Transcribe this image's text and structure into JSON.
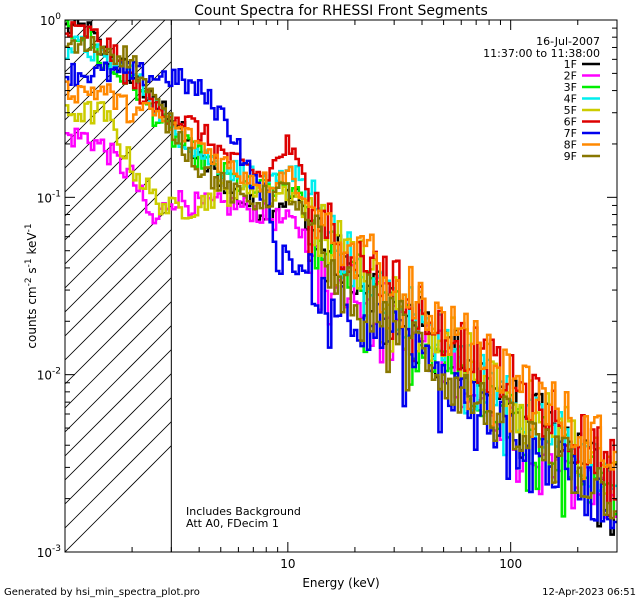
{
  "chart_data": {
    "type": "line",
    "title": "Count Spectra for RHESSI Front Segments",
    "xlabel": "Energy (keV)",
    "ylabel_main": "counts cm",
    "ylabel_exp1": "-2",
    "ylabel_mid": " s",
    "ylabel_exp2": "-1",
    "ylabel_unit": " keV",
    "ylabel_exp3": "-1",
    "xscale": "log",
    "yscale": "log",
    "xlim": [
      1,
      300
    ],
    "ylim": [
      0.001,
      1.0
    ],
    "x_ticks": [
      {
        "value": 10,
        "label": "10"
      },
      {
        "value": 100,
        "label": "100"
      }
    ],
    "y_ticks": [
      {
        "value": 1.0,
        "base": "10",
        "exp": "0"
      },
      {
        "value": 0.1,
        "base": "10",
        "exp": "-1"
      },
      {
        "value": 0.01,
        "base": "10",
        "exp": "-2"
      },
      {
        "value": 0.001,
        "base": "10",
        "exp": "-3"
      }
    ],
    "hatched_region": {
      "x_from": 1,
      "x_to": 3
    },
    "date": "16-Jul-2007",
    "time_range": "11:37:00 to 11:38:00",
    "annotations": [
      "Includes Background",
      "Att A0, FDecim 1"
    ],
    "series": [
      {
        "name": "1F",
        "color": "#000000",
        "points": [
          [
            1.25,
            0.9
          ],
          [
            1.5,
            0.65
          ],
          [
            2,
            0.5
          ],
          [
            2.5,
            0.33
          ],
          [
            3,
            0.3
          ],
          [
            4,
            0.16
          ],
          [
            5,
            0.13
          ],
          [
            6,
            0.1
          ],
          [
            7,
            0.088
          ],
          [
            8,
            0.084
          ],
          [
            10,
            0.1
          ],
          [
            11,
            0.1
          ],
          [
            13,
            0.065
          ],
          [
            15,
            0.045
          ],
          [
            20,
            0.039
          ],
          [
            30,
            0.026
          ],
          [
            40,
            0.019
          ],
          [
            50,
            0.015
          ],
          [
            70,
            0.0105
          ],
          [
            100,
            0.007
          ],
          [
            150,
            0.005
          ],
          [
            200,
            0.0038
          ],
          [
            250,
            0.003
          ],
          [
            300,
            0.0025
          ]
        ]
      },
      {
        "name": "2F",
        "color": "#ff00ff",
        "points": [
          [
            1.25,
            0.22
          ],
          [
            1.5,
            0.19
          ],
          [
            2,
            0.13
          ],
          [
            2.5,
            0.07
          ],
          [
            3,
            0.1
          ],
          [
            4,
            0.09
          ],
          [
            5,
            0.09
          ],
          [
            6,
            0.09
          ],
          [
            7,
            0.085
          ],
          [
            8,
            0.078
          ],
          [
            10,
            0.072
          ],
          [
            11,
            0.07
          ],
          [
            13,
            0.05
          ],
          [
            15,
            0.04
          ],
          [
            20,
            0.032
          ],
          [
            30,
            0.022
          ],
          [
            40,
            0.016
          ],
          [
            50,
            0.012
          ],
          [
            70,
            0.008
          ],
          [
            100,
            0.0055
          ],
          [
            150,
            0.0038
          ],
          [
            200,
            0.0026
          ],
          [
            250,
            0.002
          ],
          [
            300,
            0.0018
          ]
        ]
      },
      {
        "name": "3F",
        "color": "#00ee00",
        "points": [
          [
            1.25,
            0.85
          ],
          [
            1.5,
            0.55
          ],
          [
            2,
            0.45
          ],
          [
            2.5,
            0.3
          ],
          [
            3,
            0.22
          ],
          [
            4,
            0.17
          ],
          [
            5,
            0.14
          ],
          [
            6,
            0.12
          ],
          [
            7,
            0.11
          ],
          [
            8,
            0.11
          ],
          [
            10,
            0.12
          ],
          [
            11,
            0.1
          ],
          [
            13,
            0.07
          ],
          [
            15,
            0.05
          ],
          [
            20,
            0.035
          ],
          [
            30,
            0.024
          ],
          [
            40,
            0.017
          ],
          [
            50,
            0.013
          ],
          [
            70,
            0.009
          ],
          [
            100,
            0.006
          ],
          [
            150,
            0.0042
          ],
          [
            200,
            0.003
          ],
          [
            250,
            0.0024
          ],
          [
            300,
            0.002
          ]
        ]
      },
      {
        "name": "4F",
        "color": "#00eeee",
        "points": [
          [
            1.25,
            0.7
          ],
          [
            1.5,
            0.6
          ],
          [
            2,
            0.5
          ],
          [
            2.5,
            0.35
          ],
          [
            3,
            0.25
          ],
          [
            4,
            0.18
          ],
          [
            5,
            0.15
          ],
          [
            6,
            0.14
          ],
          [
            7,
            0.13
          ],
          [
            8,
            0.11
          ],
          [
            10,
            0.13
          ],
          [
            11,
            0.15
          ],
          [
            13,
            0.09
          ],
          [
            15,
            0.06
          ],
          [
            20,
            0.042
          ],
          [
            30,
            0.028
          ],
          [
            40,
            0.02
          ],
          [
            50,
            0.015
          ],
          [
            70,
            0.01
          ],
          [
            100,
            0.0075
          ],
          [
            150,
            0.005
          ],
          [
            200,
            0.0036
          ],
          [
            250,
            0.003
          ],
          [
            300,
            0.0025
          ]
        ]
      },
      {
        "name": "5F",
        "color": "#cccc00",
        "points": [
          [
            1.25,
            0.3
          ],
          [
            1.5,
            0.3
          ],
          [
            2,
            0.15
          ],
          [
            2.5,
            0.1
          ],
          [
            3,
            0.085
          ],
          [
            4,
            0.09
          ],
          [
            5,
            0.11
          ],
          [
            6,
            0.1
          ],
          [
            7,
            0.12
          ],
          [
            8,
            0.1
          ],
          [
            10,
            0.11
          ],
          [
            11,
            0.1
          ],
          [
            13,
            0.075
          ],
          [
            15,
            0.06
          ],
          [
            20,
            0.045
          ],
          [
            30,
            0.03
          ],
          [
            40,
            0.022
          ],
          [
            50,
            0.016
          ],
          [
            70,
            0.012
          ],
          [
            100,
            0.008
          ],
          [
            150,
            0.0055
          ],
          [
            200,
            0.004
          ],
          [
            250,
            0.0032
          ],
          [
            300,
            0.0028
          ]
        ]
      },
      {
        "name": "6F",
        "color": "#dd0000",
        "points": [
          [
            1.25,
            0.85
          ],
          [
            1.5,
            0.75
          ],
          [
            2,
            0.45
          ],
          [
            2.5,
            0.32
          ],
          [
            3,
            0.3
          ],
          [
            4,
            0.24
          ],
          [
            5,
            0.18
          ],
          [
            6,
            0.15
          ],
          [
            7,
            0.14
          ],
          [
            8,
            0.13
          ],
          [
            10,
            0.2
          ],
          [
            11,
            0.15
          ],
          [
            13,
            0.1
          ],
          [
            15,
            0.07
          ],
          [
            20,
            0.048
          ],
          [
            30,
            0.032
          ],
          [
            40,
            0.024
          ],
          [
            50,
            0.018
          ],
          [
            70,
            0.013
          ],
          [
            100,
            0.009
          ],
          [
            150,
            0.006
          ],
          [
            200,
            0.0044
          ],
          [
            250,
            0.0036
          ],
          [
            300,
            0.003
          ]
        ]
      },
      {
        "name": "7F",
        "color": "#0000ee",
        "points": [
          [
            1.25,
            0.5
          ],
          [
            1.5,
            0.5
          ],
          [
            2,
            0.5
          ],
          [
            2.5,
            0.48
          ],
          [
            3,
            0.48
          ],
          [
            4,
            0.4
          ],
          [
            5,
            0.3
          ],
          [
            6,
            0.2
          ],
          [
            7,
            0.12
          ],
          [
            8,
            0.11
          ],
          [
            9,
            0.04
          ],
          [
            10,
            0.05
          ],
          [
            11,
            0.04
          ],
          [
            13,
            0.035
          ],
          [
            15,
            0.028
          ],
          [
            20,
            0.022
          ],
          [
            30,
            0.016
          ],
          [
            40,
            0.012
          ],
          [
            50,
            0.009
          ],
          [
            70,
            0.0065
          ],
          [
            100,
            0.0045
          ],
          [
            150,
            0.0032
          ],
          [
            200,
            0.0025
          ],
          [
            250,
            0.002
          ],
          [
            300,
            0.0018
          ]
        ]
      },
      {
        "name": "8F",
        "color": "#ff8800",
        "points": [
          [
            1.25,
            0.4
          ],
          [
            1.5,
            0.4
          ],
          [
            2,
            0.3
          ],
          [
            2.5,
            0.3
          ],
          [
            3,
            0.25
          ],
          [
            4,
            0.2
          ],
          [
            5,
            0.16
          ],
          [
            6,
            0.14
          ],
          [
            7,
            0.13
          ],
          [
            8,
            0.12
          ],
          [
            10,
            0.14
          ],
          [
            11,
            0.12
          ],
          [
            13,
            0.09
          ],
          [
            15,
            0.065
          ],
          [
            20,
            0.05
          ],
          [
            30,
            0.035
          ],
          [
            40,
            0.026
          ],
          [
            50,
            0.019
          ],
          [
            70,
            0.014
          ],
          [
            100,
            0.01
          ],
          [
            150,
            0.007
          ],
          [
            200,
            0.005
          ],
          [
            250,
            0.0042
          ],
          [
            300,
            0.0035
          ]
        ]
      },
      {
        "name": "9F",
        "color": "#887700",
        "points": [
          [
            1.25,
            0.7
          ],
          [
            1.5,
            0.7
          ],
          [
            2,
            0.6
          ],
          [
            2.5,
            0.35
          ],
          [
            3,
            0.25
          ],
          [
            4,
            0.15
          ],
          [
            5,
            0.12
          ],
          [
            6,
            0.1
          ],
          [
            7,
            0.095
          ],
          [
            8,
            0.1
          ],
          [
            10,
            0.11
          ],
          [
            11,
            0.09
          ],
          [
            13,
            0.06
          ],
          [
            15,
            0.045
          ],
          [
            20,
            0.03
          ],
          [
            30,
            0.02
          ],
          [
            40,
            0.014
          ],
          [
            50,
            0.01
          ],
          [
            70,
            0.007
          ],
          [
            100,
            0.005
          ],
          [
            150,
            0.0036
          ],
          [
            200,
            0.0028
          ],
          [
            250,
            0.0024
          ],
          [
            300,
            0.002
          ]
        ]
      }
    ]
  },
  "footer": {
    "generated_by": "Generated by hsi_min_spectra_plot.pro",
    "generated_on": "12-Apr-2023 06:51"
  }
}
